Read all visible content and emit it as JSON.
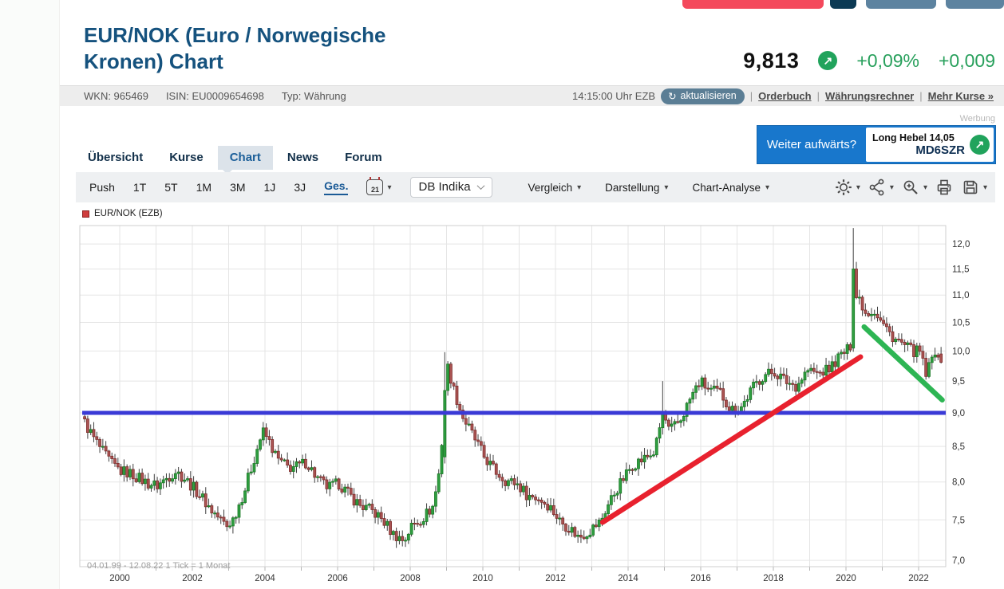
{
  "page": {
    "werbung_label": "Werbung",
    "top_button_colors": [
      "#f4495c",
      "#0c3a54",
      "#5d83a0",
      "#5d83a0"
    ]
  },
  "header": {
    "title_line1": "EUR/NOK (Euro / Norwegische",
    "title_line2": "Kronen) Chart",
    "wkn": "WKN: 965469",
    "isin": "ISIN: EU0009654698",
    "typ": "Typ: Währung",
    "price": "9,813",
    "change_percent": "+0,09%",
    "change_abs": "+0,009",
    "time": "14:15:00 Uhr EZB",
    "refresh_icon": "↻",
    "refresh_label": "aktualisieren",
    "up_arrow": "↗",
    "links": [
      "Orderbuch",
      "Währungsrechner",
      "Mehr Kurse »"
    ],
    "link_sep": "|"
  },
  "tabs": [
    {
      "label": "Übersicht",
      "active": false
    },
    {
      "label": "Kurse",
      "active": false
    },
    {
      "label": "Chart",
      "active": true
    },
    {
      "label": "News",
      "active": false
    },
    {
      "label": "Forum",
      "active": false
    }
  ],
  "ad": {
    "question": "Weiter aufwärts?",
    "product_line1": "Long Hebel 14,05",
    "product_code": "MD6SZR",
    "up_arrow": "↗"
  },
  "toolbar": {
    "ranges": [
      "Push",
      "1T",
      "5T",
      "1M",
      "3M",
      "1J",
      "3J",
      "Ges."
    ],
    "active_range": "Ges.",
    "calendar_day": "21",
    "indicator_select": "DB Indika",
    "menus": [
      "Vergleich",
      "Darstellung",
      "Chart-Analyse"
    ],
    "caret": "▾"
  },
  "chart": {
    "legend": "EUR/NOK (EZB)",
    "footnote_range": "04.01.99 - 12.08.22",
    "footnote_tick": "1 Tick = 1 Monat"
  },
  "chart_data": {
    "type": "candlestick",
    "series_name": "EUR/NOK (EZB)",
    "x_start": 1999.0,
    "x_end": 2022.583,
    "tick_interval_months": 1,
    "y_scale": "log",
    "y_ticks": [
      7.0,
      7.5,
      8.0,
      8.5,
      9.0,
      9.5,
      10.0,
      10.5,
      11.0,
      11.5,
      12.0
    ],
    "x_labels": [
      2000,
      2002,
      2004,
      2006,
      2008,
      2010,
      2012,
      2014,
      2016,
      2018,
      2020,
      2022
    ],
    "anchors": [
      [
        1999.0,
        8.85
      ],
      [
        1999.25,
        8.62
      ],
      [
        1999.5,
        8.42
      ],
      [
        1999.75,
        8.25
      ],
      [
        2000.0,
        8.15
      ],
      [
        2000.25,
        8.12
      ],
      [
        2000.5,
        8.05
      ],
      [
        2000.75,
        7.98
      ],
      [
        2001.0,
        7.95
      ],
      [
        2001.25,
        8.05
      ],
      [
        2001.5,
        8.15
      ],
      [
        2001.75,
        8.05
      ],
      [
        2002.0,
        7.92
      ],
      [
        2002.25,
        7.78
      ],
      [
        2002.5,
        7.62
      ],
      [
        2002.75,
        7.5
      ],
      [
        2002.92,
        7.42
      ],
      [
        2003.1,
        7.52
      ],
      [
        2003.4,
        7.88
      ],
      [
        2003.65,
        8.3
      ],
      [
        2003.9,
        8.72
      ],
      [
        2004.05,
        8.6
      ],
      [
        2004.3,
        8.32
      ],
      [
        2004.6,
        8.2
      ],
      [
        2004.9,
        8.22
      ],
      [
        2005.1,
        8.28
      ],
      [
        2005.4,
        8.05
      ],
      [
        2005.7,
        7.92
      ],
      [
        2006.0,
        7.98
      ],
      [
        2006.3,
        7.82
      ],
      [
        2006.6,
        7.68
      ],
      [
        2006.9,
        7.62
      ],
      [
        2007.2,
        7.5
      ],
      [
        2007.5,
        7.32
      ],
      [
        2007.8,
        7.24
      ],
      [
        2008.0,
        7.42
      ],
      [
        2008.3,
        7.52
      ],
      [
        2008.6,
        7.68
      ],
      [
        2008.8,
        8.25
      ],
      [
        2008.92,
        9.35
      ],
      [
        2009.0,
        9.75
      ],
      [
        2009.17,
        9.35
      ],
      [
        2009.4,
        8.95
      ],
      [
        2009.7,
        8.65
      ],
      [
        2010.0,
        8.35
      ],
      [
        2010.3,
        8.15
      ],
      [
        2010.6,
        8.02
      ],
      [
        2010.9,
        7.98
      ],
      [
        2011.2,
        7.82
      ],
      [
        2011.5,
        7.78
      ],
      [
        2011.8,
        7.68
      ],
      [
        2012.1,
        7.48
      ],
      [
        2012.4,
        7.38
      ],
      [
        2012.6,
        7.28
      ],
      [
        2012.9,
        7.36
      ],
      [
        2013.2,
        7.48
      ],
      [
        2013.5,
        7.78
      ],
      [
        2013.8,
        8.02
      ],
      [
        2014.1,
        8.25
      ],
      [
        2014.4,
        8.32
      ],
      [
        2014.7,
        8.42
      ],
      [
        2014.92,
        9.0
      ],
      [
        2015.1,
        8.72
      ],
      [
        2015.4,
        8.88
      ],
      [
        2015.7,
        9.25
      ],
      [
        2015.95,
        9.5
      ],
      [
        2016.2,
        9.35
      ],
      [
        2016.5,
        9.32
      ],
      [
        2016.8,
        9.05
      ],
      [
        2017.1,
        9.1
      ],
      [
        2017.4,
        9.4
      ],
      [
        2017.7,
        9.6
      ],
      [
        2018.0,
        9.65
      ],
      [
        2018.3,
        9.5
      ],
      [
        2018.6,
        9.42
      ],
      [
        2018.9,
        9.68
      ],
      [
        2019.2,
        9.62
      ],
      [
        2019.5,
        9.7
      ],
      [
        2019.8,
        9.92
      ],
      [
        2020.08,
        10.05
      ],
      [
        2020.17,
        11.5
      ],
      [
        2020.33,
        10.95
      ],
      [
        2020.5,
        10.68
      ],
      [
        2020.75,
        10.72
      ],
      [
        2020.95,
        10.5
      ],
      [
        2021.2,
        10.28
      ],
      [
        2021.5,
        10.12
      ],
      [
        2021.8,
        10.0
      ],
      [
        2022.0,
        9.98
      ],
      [
        2022.17,
        9.6
      ],
      [
        2022.33,
        9.85
      ],
      [
        2022.45,
        10.08
      ],
      [
        2022.583,
        9.81
      ]
    ],
    "candle_overrides": [
      {
        "t": 2020.167,
        "open": 10.05,
        "close": 11.5
      },
      {
        "t": 2020.25,
        "open": 11.5,
        "close": 10.95
      },
      {
        "t": 2008.917,
        "open": 8.35,
        "close": 9.35
      },
      {
        "t": 2009.0,
        "open": 9.35,
        "close": 9.78
      },
      {
        "t": 2022.583,
        "open": 9.95,
        "close": 9.81
      }
    ],
    "wick_overrides": [
      {
        "t": 2020.167,
        "high": 12.33
      },
      {
        "t": 2008.917,
        "high": 9.98
      },
      {
        "t": 2014.917,
        "high": 9.5
      }
    ],
    "overlays": {
      "horizontal_line": {
        "value": 9.0,
        "color": "#3a3ad6",
        "width": 5
      },
      "uptrend_line": {
        "from": [
          2013.3,
          7.47
        ],
        "to": [
          2020.4,
          9.9
        ],
        "color": "#e8212e",
        "width": 6.5
      },
      "downtrend_line": {
        "from": [
          2020.5,
          10.42
        ],
        "to": [
          2022.65,
          9.2
        ],
        "color": "#2db553",
        "width": 6.5
      }
    },
    "colors": {
      "up": "#2f9e41",
      "up_border": "#1a7a24",
      "down": "#aa5453",
      "down_border": "#7e2d2c",
      "wick": "#3f3f3f",
      "grid": "#e5e5e5",
      "frame": "#cfcfcf",
      "tick": "#b5b5b5",
      "label": "#333333",
      "footnote": "#9e9e9e"
    }
  }
}
